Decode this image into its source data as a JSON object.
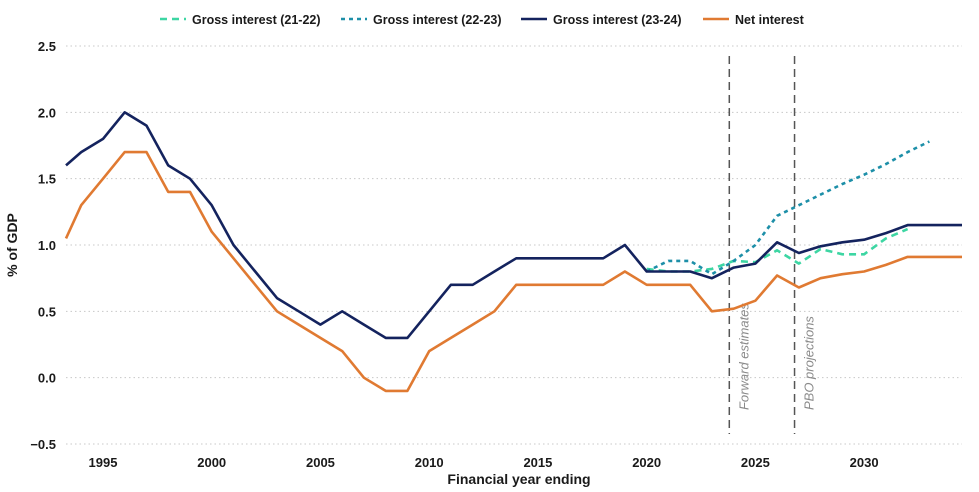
{
  "chart_data": {
    "type": "line",
    "xlabel": "Financial year ending",
    "ylabel": "% of GDP",
    "xlim": [
      1993.3,
      2034.5
    ],
    "ylim": [
      -0.5,
      2.5
    ],
    "x_ticks": [
      1995,
      2000,
      2005,
      2010,
      2015,
      2020,
      2025,
      2030
    ],
    "y_ticks": [
      -0.5,
      0.0,
      0.5,
      1.0,
      1.5,
      2.0,
      2.5
    ],
    "y_tick_labels": [
      "−0.5",
      "0.0",
      "0.5",
      "1.0",
      "1.5",
      "2.0",
      "2.5"
    ],
    "grid": "horizontal-dotted",
    "legend_position": "top",
    "series": [
      {
        "name": "Gross interest (21-22)",
        "color": "#3dd6a3",
        "style": "dashed",
        "x": [
          2020,
          2021,
          2022,
          2023,
          2024,
          2025,
          2026,
          2027,
          2028,
          2029,
          2030,
          2031,
          2032
        ],
        "values": [
          0.82,
          0.8,
          0.8,
          0.82,
          0.88,
          0.87,
          0.96,
          0.86,
          0.97,
          0.93,
          0.93,
          1.05,
          1.12
        ]
      },
      {
        "name": "Gross interest (22-23)",
        "color": "#1d8fa8",
        "style": "dotted",
        "x": [
          2020,
          2021,
          2022,
          2023,
          2024,
          2025,
          2026,
          2027,
          2028,
          2029,
          2030,
          2031,
          2032,
          2033
        ],
        "values": [
          0.8,
          0.88,
          0.88,
          0.78,
          0.88,
          1.0,
          1.22,
          1.3,
          1.38,
          1.46,
          1.53,
          1.61,
          1.7,
          1.78
        ]
      },
      {
        "name": "Gross interest (23-24)",
        "color": "#14235e",
        "style": "solid",
        "x": [
          1993.3,
          1994,
          1995,
          1996,
          1997,
          1998,
          1999,
          2000,
          2001,
          2002,
          2003,
          2004,
          2005,
          2006,
          2007,
          2008,
          2009,
          2010,
          2011,
          2012,
          2013,
          2014,
          2015,
          2016,
          2017,
          2018,
          2019,
          2020,
          2021,
          2022,
          2023,
          2024,
          2025,
          2026,
          2027,
          2028,
          2029,
          2030,
          2031,
          2032,
          2033,
          2034.5
        ],
        "values": [
          1.6,
          1.7,
          1.8,
          2.0,
          1.9,
          1.6,
          1.5,
          1.3,
          1.0,
          0.8,
          0.6,
          0.5,
          0.4,
          0.5,
          0.4,
          0.3,
          0.3,
          0.5,
          0.7,
          0.7,
          0.8,
          0.9,
          0.9,
          0.9,
          0.9,
          0.9,
          1.0,
          0.8,
          0.8,
          0.8,
          0.75,
          0.83,
          0.86,
          1.02,
          0.94,
          0.99,
          1.02,
          1.04,
          1.09,
          1.15,
          1.15,
          1.15
        ]
      },
      {
        "name": "Net interest",
        "color": "#e07a32",
        "style": "solid",
        "x": [
          1993.3,
          1994,
          1995,
          1996,
          1997,
          1998,
          1999,
          2000,
          2001,
          2002,
          2003,
          2004,
          2005,
          2006,
          2007,
          2008,
          2009,
          2010,
          2011,
          2012,
          2013,
          2014,
          2015,
          2016,
          2017,
          2018,
          2019,
          2020,
          2021,
          2022,
          2023,
          2024,
          2025,
          2026,
          2027,
          2028,
          2029,
          2030,
          2031,
          2032,
          2033,
          2034.5
        ],
        "values": [
          1.05,
          1.3,
          1.5,
          1.7,
          1.7,
          1.4,
          1.4,
          1.1,
          0.9,
          0.7,
          0.5,
          0.4,
          0.3,
          0.2,
          0.0,
          -0.1,
          -0.1,
          0.2,
          0.3,
          0.4,
          0.5,
          0.7,
          0.7,
          0.7,
          0.7,
          0.7,
          0.8,
          0.7,
          0.7,
          0.7,
          0.5,
          0.52,
          0.58,
          0.77,
          0.68,
          0.75,
          0.78,
          0.8,
          0.85,
          0.91,
          0.91,
          0.91
        ]
      }
    ],
    "annotations": [
      {
        "label": "Forward estimates",
        "x": 2023.8
      },
      {
        "label": "PBO projections",
        "x": 2026.8
      }
    ]
  }
}
